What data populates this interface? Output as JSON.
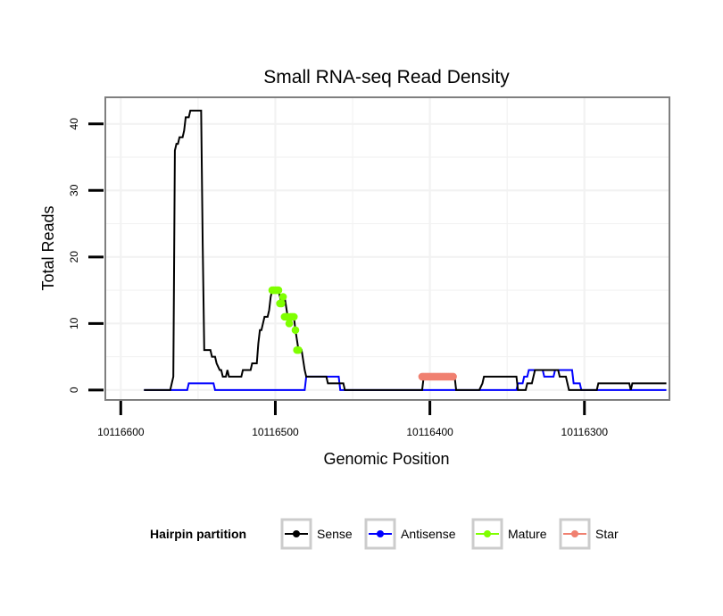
{
  "chart_data": {
    "type": "line",
    "title": "Small RNA-seq Read Density",
    "xlabel": "Genomic Position",
    "ylabel": "Total Reads",
    "xlim": [
      10116610,
      10116245
    ],
    "x_reversed": true,
    "ylim": [
      -1.5,
      44
    ],
    "xticks": [
      10116600,
      10116500,
      10116400,
      10116300
    ],
    "xtick_labels": [
      "10116600",
      "10116500",
      "10116400",
      "10116300"
    ],
    "yticks": [
      0,
      10,
      20,
      30,
      40
    ],
    "ytick_labels": [
      "0",
      "10",
      "20",
      "30",
      "40"
    ],
    "grid": true,
    "legend": {
      "title": "Hairpin partition",
      "position": "bottom",
      "entries": [
        "Sense",
        "Antisense",
        "Mature",
        "Star"
      ]
    },
    "series": [
      {
        "name": "Sense",
        "color": "#000000",
        "style": "line",
        "points": [
          [
            10116585,
            0
          ],
          [
            10116568,
            0
          ],
          [
            10116566,
            2
          ],
          [
            10116565,
            36
          ],
          [
            10116564,
            37
          ],
          [
            10116563,
            37
          ],
          [
            10116562,
            38
          ],
          [
            10116560,
            38
          ],
          [
            10116559,
            39
          ],
          [
            10116558,
            41
          ],
          [
            10116556,
            41
          ],
          [
            10116555,
            42
          ],
          [
            10116548,
            42
          ],
          [
            10116547,
            22
          ],
          [
            10116546,
            6
          ],
          [
            10116542,
            6
          ],
          [
            10116541,
            5
          ],
          [
            10116539,
            5
          ],
          [
            10116538,
            4
          ],
          [
            10116536,
            3
          ],
          [
            10116535,
            3
          ],
          [
            10116534,
            2
          ],
          [
            10116532,
            2
          ],
          [
            10116531,
            3
          ],
          [
            10116530,
            2
          ],
          [
            10116522,
            2
          ],
          [
            10116521,
            3
          ],
          [
            10116516,
            3
          ],
          [
            10116515,
            4
          ],
          [
            10116512,
            4
          ],
          [
            10116511,
            7
          ],
          [
            10116510,
            9
          ],
          [
            10116509,
            9
          ],
          [
            10116508,
            10
          ],
          [
            10116507,
            11
          ],
          [
            10116505,
            11
          ],
          [
            10116504,
            12
          ],
          [
            10116503,
            14
          ],
          [
            10116502,
            15
          ],
          [
            10116500,
            15
          ],
          [
            10116498,
            15
          ],
          [
            10116496,
            13
          ],
          [
            10116494,
            14
          ],
          [
            10116492,
            11
          ],
          [
            10116490,
            11
          ],
          [
            10116488,
            11
          ],
          [
            10116487,
            9
          ],
          [
            10116485,
            6
          ],
          [
            10116483,
            6
          ],
          [
            10116481,
            3
          ],
          [
            10116480,
            2
          ],
          [
            10116467,
            2
          ],
          [
            10116466,
            1
          ],
          [
            10116456,
            1
          ],
          [
            10116455,
            0
          ],
          [
            10116405,
            0
          ],
          [
            10116404,
            2
          ],
          [
            10116384,
            2
          ],
          [
            10116383,
            0
          ],
          [
            10116368,
            0
          ],
          [
            10116366,
            1
          ],
          [
            10116365,
            2
          ],
          [
            10116344,
            2
          ],
          [
            10116343,
            0
          ],
          [
            10116338,
            0
          ],
          [
            10116337,
            1
          ],
          [
            10116334,
            1
          ],
          [
            10116333,
            2
          ],
          [
            10116332,
            3
          ],
          [
            10116317,
            3
          ],
          [
            10116316,
            2
          ],
          [
            10116312,
            2
          ],
          [
            10116311,
            1
          ],
          [
            10116310,
            0
          ],
          [
            10116292,
            0
          ],
          [
            10116291,
            1
          ],
          [
            10116271,
            1
          ],
          [
            10116270,
            0
          ],
          [
            10116269,
            1
          ],
          [
            10116247,
            1
          ]
        ]
      },
      {
        "name": "Antisense",
        "color": "#0000ff",
        "style": "line",
        "points": [
          [
            10116585,
            0
          ],
          [
            10116557,
            0
          ],
          [
            10116556,
            1
          ],
          [
            10116540,
            1
          ],
          [
            10116539,
            0
          ],
          [
            10116481,
            0
          ],
          [
            10116480,
            2
          ],
          [
            10116459,
            2
          ],
          [
            10116458,
            0
          ],
          [
            10116344,
            0
          ],
          [
            10116343,
            1
          ],
          [
            10116340,
            1
          ],
          [
            10116339,
            2
          ],
          [
            10116337,
            2
          ],
          [
            10116336,
            3
          ],
          [
            10116327,
            3
          ],
          [
            10116326,
            2
          ],
          [
            10116320,
            2
          ],
          [
            10116319,
            3
          ],
          [
            10116308,
            3
          ],
          [
            10116307,
            1
          ],
          [
            10116303,
            1
          ],
          [
            10116302,
            0
          ],
          [
            10116247,
            0
          ]
        ]
      },
      {
        "name": "Mature",
        "color": "#7fff00",
        "style": "points",
        "points": [
          [
            10116502,
            15
          ],
          [
            10116501,
            15
          ],
          [
            10116500,
            15
          ],
          [
            10116499,
            15
          ],
          [
            10116498,
            15
          ],
          [
            10116497,
            13
          ],
          [
            10116496,
            13
          ],
          [
            10116495,
            14
          ],
          [
            10116494,
            11
          ],
          [
            10116493,
            11
          ],
          [
            10116492,
            11
          ],
          [
            10116491,
            10
          ],
          [
            10116490,
            11
          ],
          [
            10116489,
            11
          ],
          [
            10116488,
            11
          ],
          [
            10116487,
            9
          ],
          [
            10116486,
            6
          ],
          [
            10116485,
            6
          ]
        ]
      },
      {
        "name": "Star",
        "color": "#f08070",
        "style": "points",
        "points": [
          [
            10116405,
            2
          ],
          [
            10116404,
            2
          ],
          [
            10116403,
            2
          ],
          [
            10116402,
            2
          ],
          [
            10116401,
            2
          ],
          [
            10116400,
            2
          ],
          [
            10116399,
            2
          ],
          [
            10116398,
            2
          ],
          [
            10116397,
            2
          ],
          [
            10116396,
            2
          ],
          [
            10116395,
            2
          ],
          [
            10116394,
            2
          ],
          [
            10116393,
            2
          ],
          [
            10116392,
            2
          ],
          [
            10116391,
            2
          ],
          [
            10116390,
            2
          ],
          [
            10116389,
            2
          ],
          [
            10116388,
            2
          ],
          [
            10116387,
            2
          ],
          [
            10116386,
            2
          ],
          [
            10116385,
            2
          ]
        ]
      }
    ]
  }
}
